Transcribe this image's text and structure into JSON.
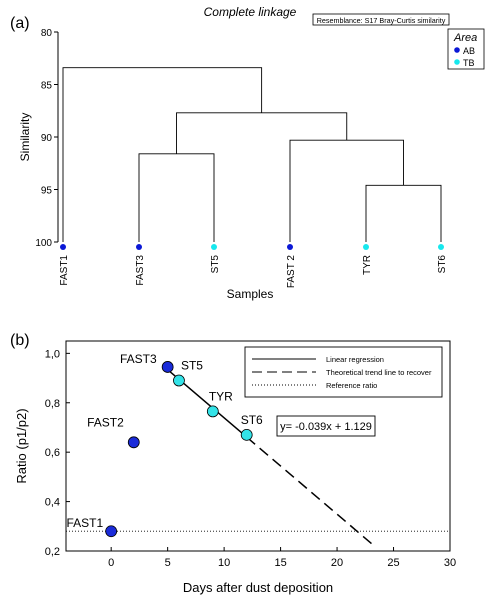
{
  "chart_data": [
    {
      "type": "dendrogram",
      "panel_label": "(a)",
      "title": "Complete linkage",
      "subtitle": "Resemblance: S17 Bray-Curtis similarity",
      "xlabel": "Samples",
      "ylabel": "Similarity",
      "ylim": [
        80,
        100
      ],
      "yticks": [
        80,
        85,
        90,
        95,
        100
      ],
      "leaves": [
        {
          "label": "FAST1",
          "area": "AB"
        },
        {
          "label": "FAST3",
          "area": "AB"
        },
        {
          "label": "ST5",
          "area": "TB"
        },
        {
          "label": "FAST 2",
          "area": "AB"
        },
        {
          "label": "TYR",
          "area": "TB"
        },
        {
          "label": "ST6",
          "area": "TB"
        }
      ],
      "merges": [
        {
          "a": "leaf:1",
          "b": "leaf:2",
          "similarity": 91.6
        },
        {
          "a": "leaf:4",
          "b": "leaf:5",
          "similarity": 94.6
        },
        {
          "a": "leaf:3",
          "b": "merge:1",
          "similarity": 90.3
        },
        {
          "a": "merge:0",
          "b": "merge:2",
          "similarity": 87.7
        },
        {
          "a": "leaf:0",
          "b": "merge:3",
          "similarity": 83.4
        }
      ],
      "legend": {
        "title": "Area",
        "items": [
          {
            "label": "AB",
            "color": "#0b18d6"
          },
          {
            "label": "TB",
            "color": "#16e8ee"
          }
        ]
      }
    },
    {
      "type": "scatter",
      "panel_label": "(b)",
      "xlabel": "Days after dust deposition",
      "ylabel": "Ratio (p1/p2)",
      "xlim": [
        -4,
        30
      ],
      "ylim": [
        0.2,
        1.05
      ],
      "xticks": [
        0,
        5,
        10,
        15,
        20,
        25,
        30
      ],
      "yticks": [
        0.2,
        0.4,
        0.6,
        0.8,
        1.0
      ],
      "ytick_labels": [
        "0,2",
        "0,4",
        "0,6",
        "0,8",
        "1,0"
      ],
      "points": [
        {
          "label": "FAST1",
          "x": 0,
          "y": 0.28,
          "color": "#1a2bd9"
        },
        {
          "label": "FAST2",
          "x": 2,
          "y": 0.64,
          "color": "#1a2bd9"
        },
        {
          "label": "FAST3",
          "x": 5,
          "y": 0.945,
          "color": "#1a2bd9"
        },
        {
          "label": "ST5",
          "x": 6,
          "y": 0.89,
          "color": "#33e3e8"
        },
        {
          "label": "TYR",
          "x": 9,
          "y": 0.765,
          "color": "#33e3e8"
        },
        {
          "label": "ST6",
          "x": 12,
          "y": 0.67,
          "color": "#33e3e8"
        }
      ],
      "regression": {
        "slope": -0.039,
        "intercept": 1.129,
        "x_range": [
          5,
          12
        ]
      },
      "trend": {
        "slope": -0.039,
        "intercept": 1.129,
        "x_range": [
          12,
          23.2
        ]
      },
      "reference_ratio": 0.28,
      "equation": "y= -0.039x + 1.129",
      "legend": [
        {
          "label": "Linear regression",
          "style": "solid"
        },
        {
          "label": "Theoretical trend line to recover",
          "style": "dashed"
        },
        {
          "label": "Reference ratio",
          "style": "dotted"
        }
      ]
    }
  ]
}
